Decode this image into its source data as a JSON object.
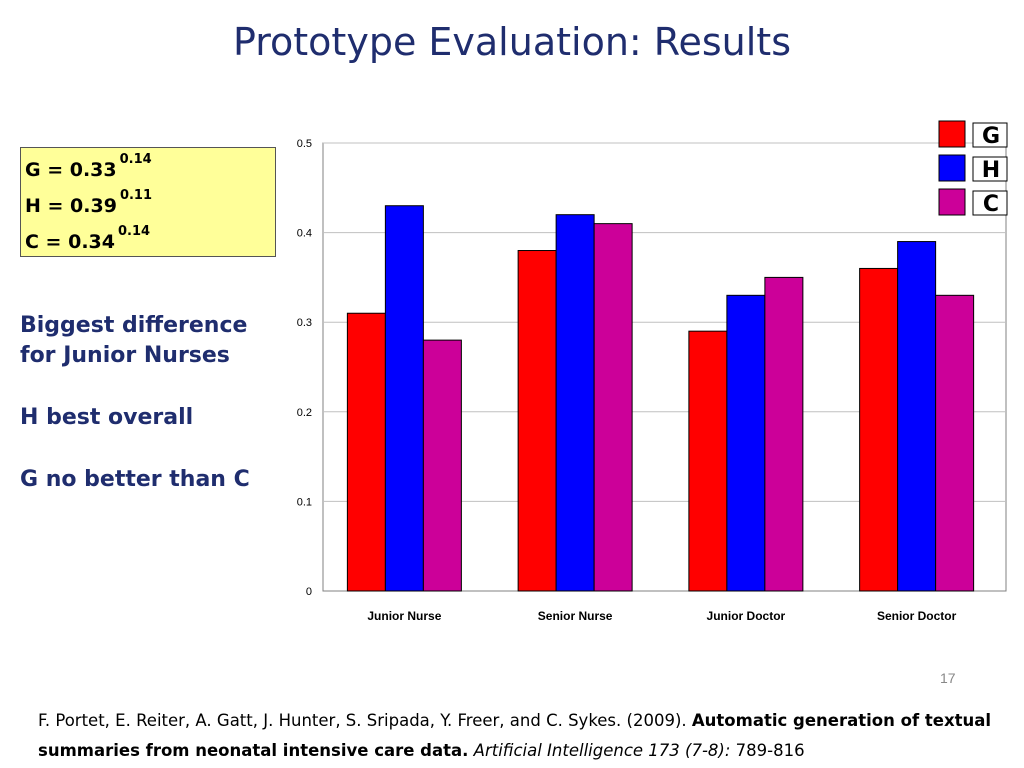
{
  "slide": {
    "title": "Prototype Evaluation: Results",
    "page_number": "17"
  },
  "stats": {
    "lines": [
      {
        "label": "G = 0.33",
        "sup": "0.14"
      },
      {
        "label": "H = 0.39",
        "sup": "0.11"
      },
      {
        "label": "C = 0.34",
        "sup": "0.14"
      }
    ]
  },
  "notes": {
    "line1": "Biggest difference",
    "line2": "for Junior Nurses",
    "line3": "H best overall",
    "line4": "G no better than C"
  },
  "citation": {
    "authors": "F. Portet, E. Reiter, A. Gatt, J. Hunter, S. Sripada, Y. Freer, and C. Sykes. (2009).",
    "paper_title": "Automatic generation of textual summaries from neonatal intensive care data.",
    "journal": "Artificial Intelligence 173 (7-8):",
    "pages": "789-816"
  },
  "chart_data": {
    "type": "bar",
    "title": "",
    "xlabel": "",
    "ylabel": "",
    "categories": [
      "Junior Nurse",
      "Senior Nurse",
      "Junior Doctor",
      "Senior Doctor"
    ],
    "series": [
      {
        "name": "G",
        "color": "#ff0000",
        "values": [
          0.31,
          0.38,
          0.29,
          0.36
        ]
      },
      {
        "name": "H",
        "color": "#0000ff",
        "values": [
          0.43,
          0.42,
          0.33,
          0.39
        ]
      },
      {
        "name": "C",
        "color": "#cc0099",
        "values": [
          0.28,
          0.41,
          0.35,
          0.33
        ]
      }
    ],
    "yticks": [
      "0",
      "0.1",
      "0.2",
      "0.3",
      "0.4",
      "0.5"
    ],
    "ylim": [
      0,
      0.5
    ],
    "grid": true,
    "legend_position": "top-right"
  }
}
